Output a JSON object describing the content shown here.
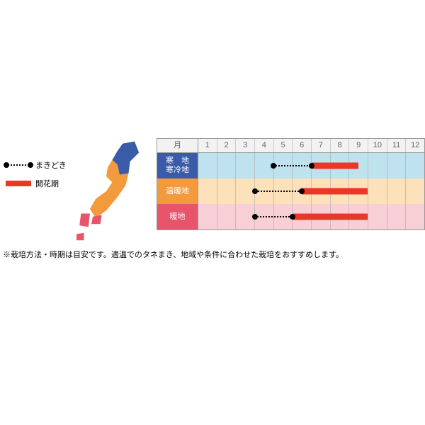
{
  "legend": {
    "sowing_label": "まきどき",
    "flowering_label": "開花期"
  },
  "colors": {
    "flower_bar": "#e83828",
    "map_blue": "#3a5ba8",
    "map_orange": "#f39a3c",
    "map_pink": "#e8546b"
  },
  "chart": {
    "month_header": "月",
    "months": [
      "1",
      "2",
      "3",
      "4",
      "5",
      "6",
      "7",
      "8",
      "9",
      "10",
      "11",
      "12"
    ],
    "rows": [
      {
        "label": "寒　地\n寒冷地",
        "label_bg": "#3a5ba8",
        "track_bg": "#bfe2ef",
        "sowing": {
          "start_month": 5.0,
          "end_month": 7.0
        },
        "flowering": {
          "start_month": 7.0,
          "end_month": 9.5
        }
      },
      {
        "label": "温暖地",
        "label_bg": "#f39a3c",
        "track_bg": "#fce1bb",
        "sowing": {
          "start_month": 4.0,
          "end_month": 6.5
        },
        "flowering": {
          "start_month": 6.5,
          "end_month": 10.0
        }
      },
      {
        "label": "暖地",
        "label_bg": "#e8546b",
        "track_bg": "#f9cfd6",
        "sowing": {
          "start_month": 4.0,
          "end_month": 6.0
        },
        "flowering": {
          "start_month": 6.0,
          "end_month": 10.0
        }
      }
    ]
  },
  "footnote": "※栽培方法・時期は目安です。適温でのタネまき、地域や条件に合わせた栽培をおすすめします。"
}
